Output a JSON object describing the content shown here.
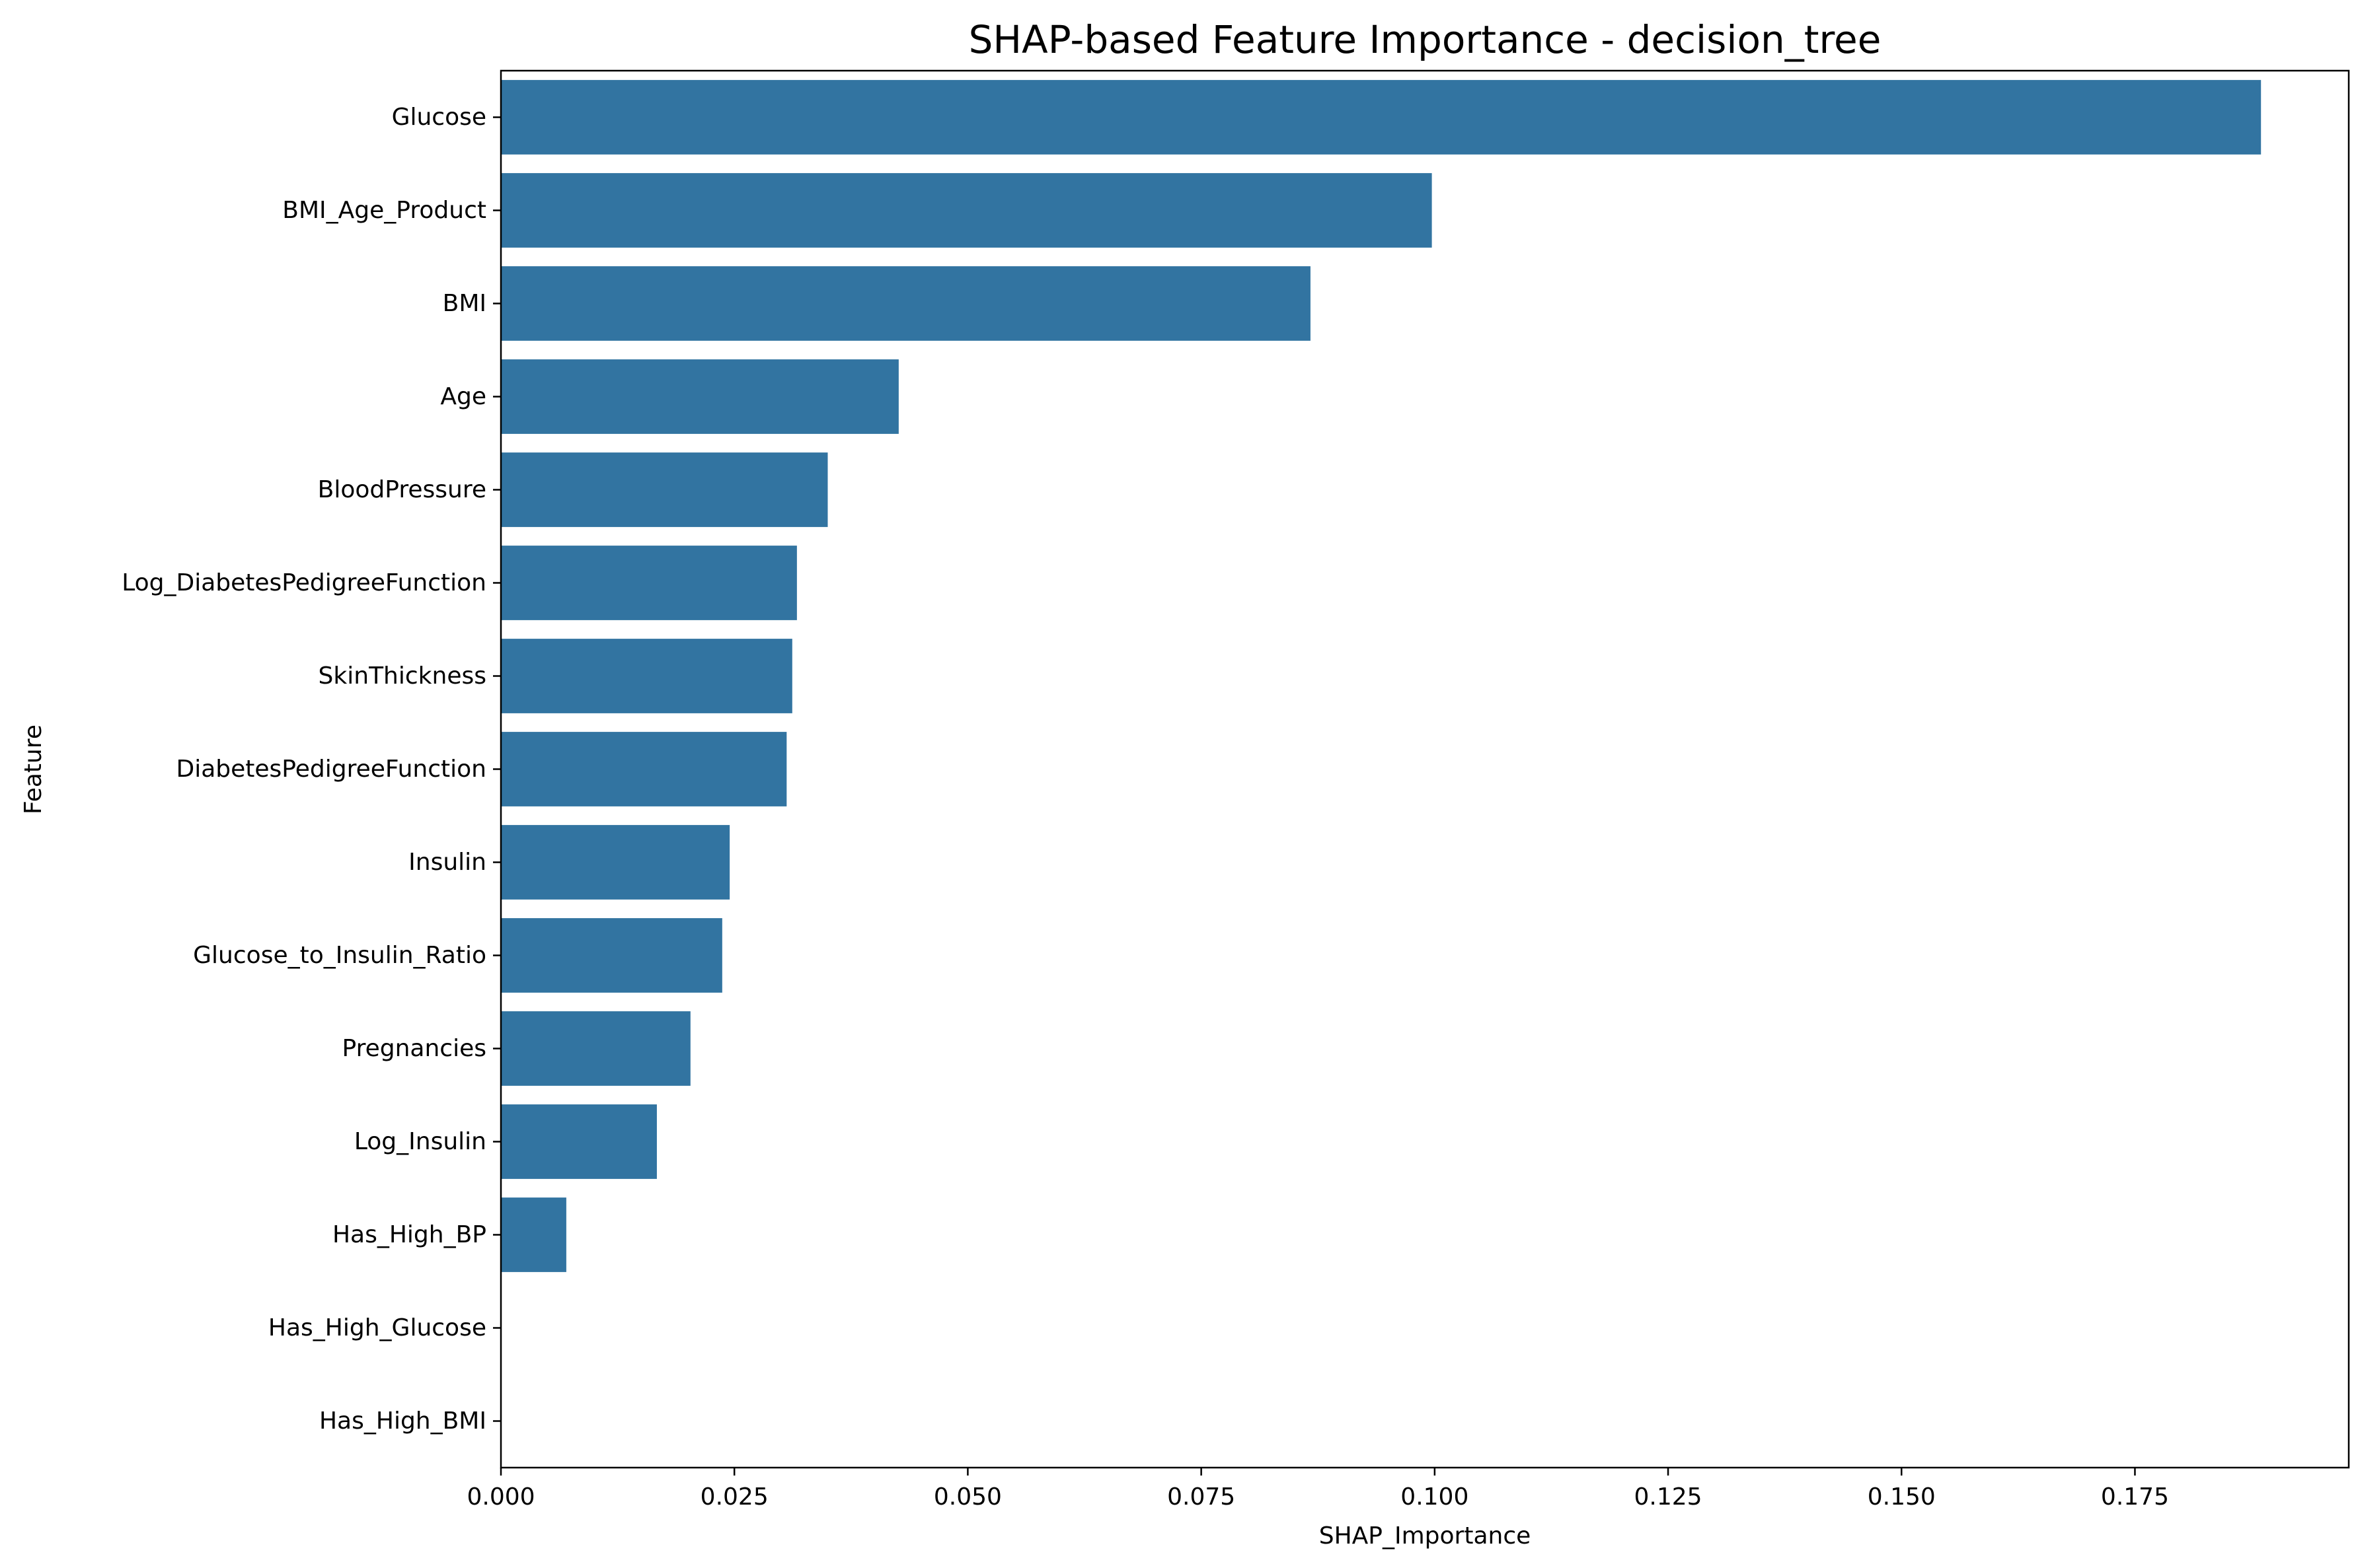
{
  "chart_data": {
    "type": "bar",
    "orientation": "horizontal",
    "title": "SHAP-based Feature Importance - decision_tree",
    "xlabel": "SHAP_Importance",
    "ylabel": "Feature",
    "categories": [
      "Glucose",
      "BMI_Age_Product",
      "BMI",
      "Age",
      "BloodPressure",
      "Log_DiabetesPedigreeFunction",
      "SkinThickness",
      "DiabetesPedigreeFunction",
      "Insulin",
      "Glucose_to_Insulin_Ratio",
      "Pregnancies",
      "Log_Insulin",
      "Has_High_BP",
      "Has_High_Glucose",
      "Has_High_BMI"
    ],
    "values": [
      0.1885,
      0.0997,
      0.0867,
      0.0426,
      0.035,
      0.0317,
      0.0312,
      0.0306,
      0.0245,
      0.0237,
      0.0203,
      0.0167,
      0.007,
      0.0,
      0.0
    ],
    "xlim": [
      0,
      0.1979
    ],
    "xticks": [
      "0.000",
      "0.025",
      "0.050",
      "0.075",
      "0.100",
      "0.125",
      "0.150",
      "0.175"
    ],
    "grid": false,
    "bar_color": "#3274a1"
  }
}
